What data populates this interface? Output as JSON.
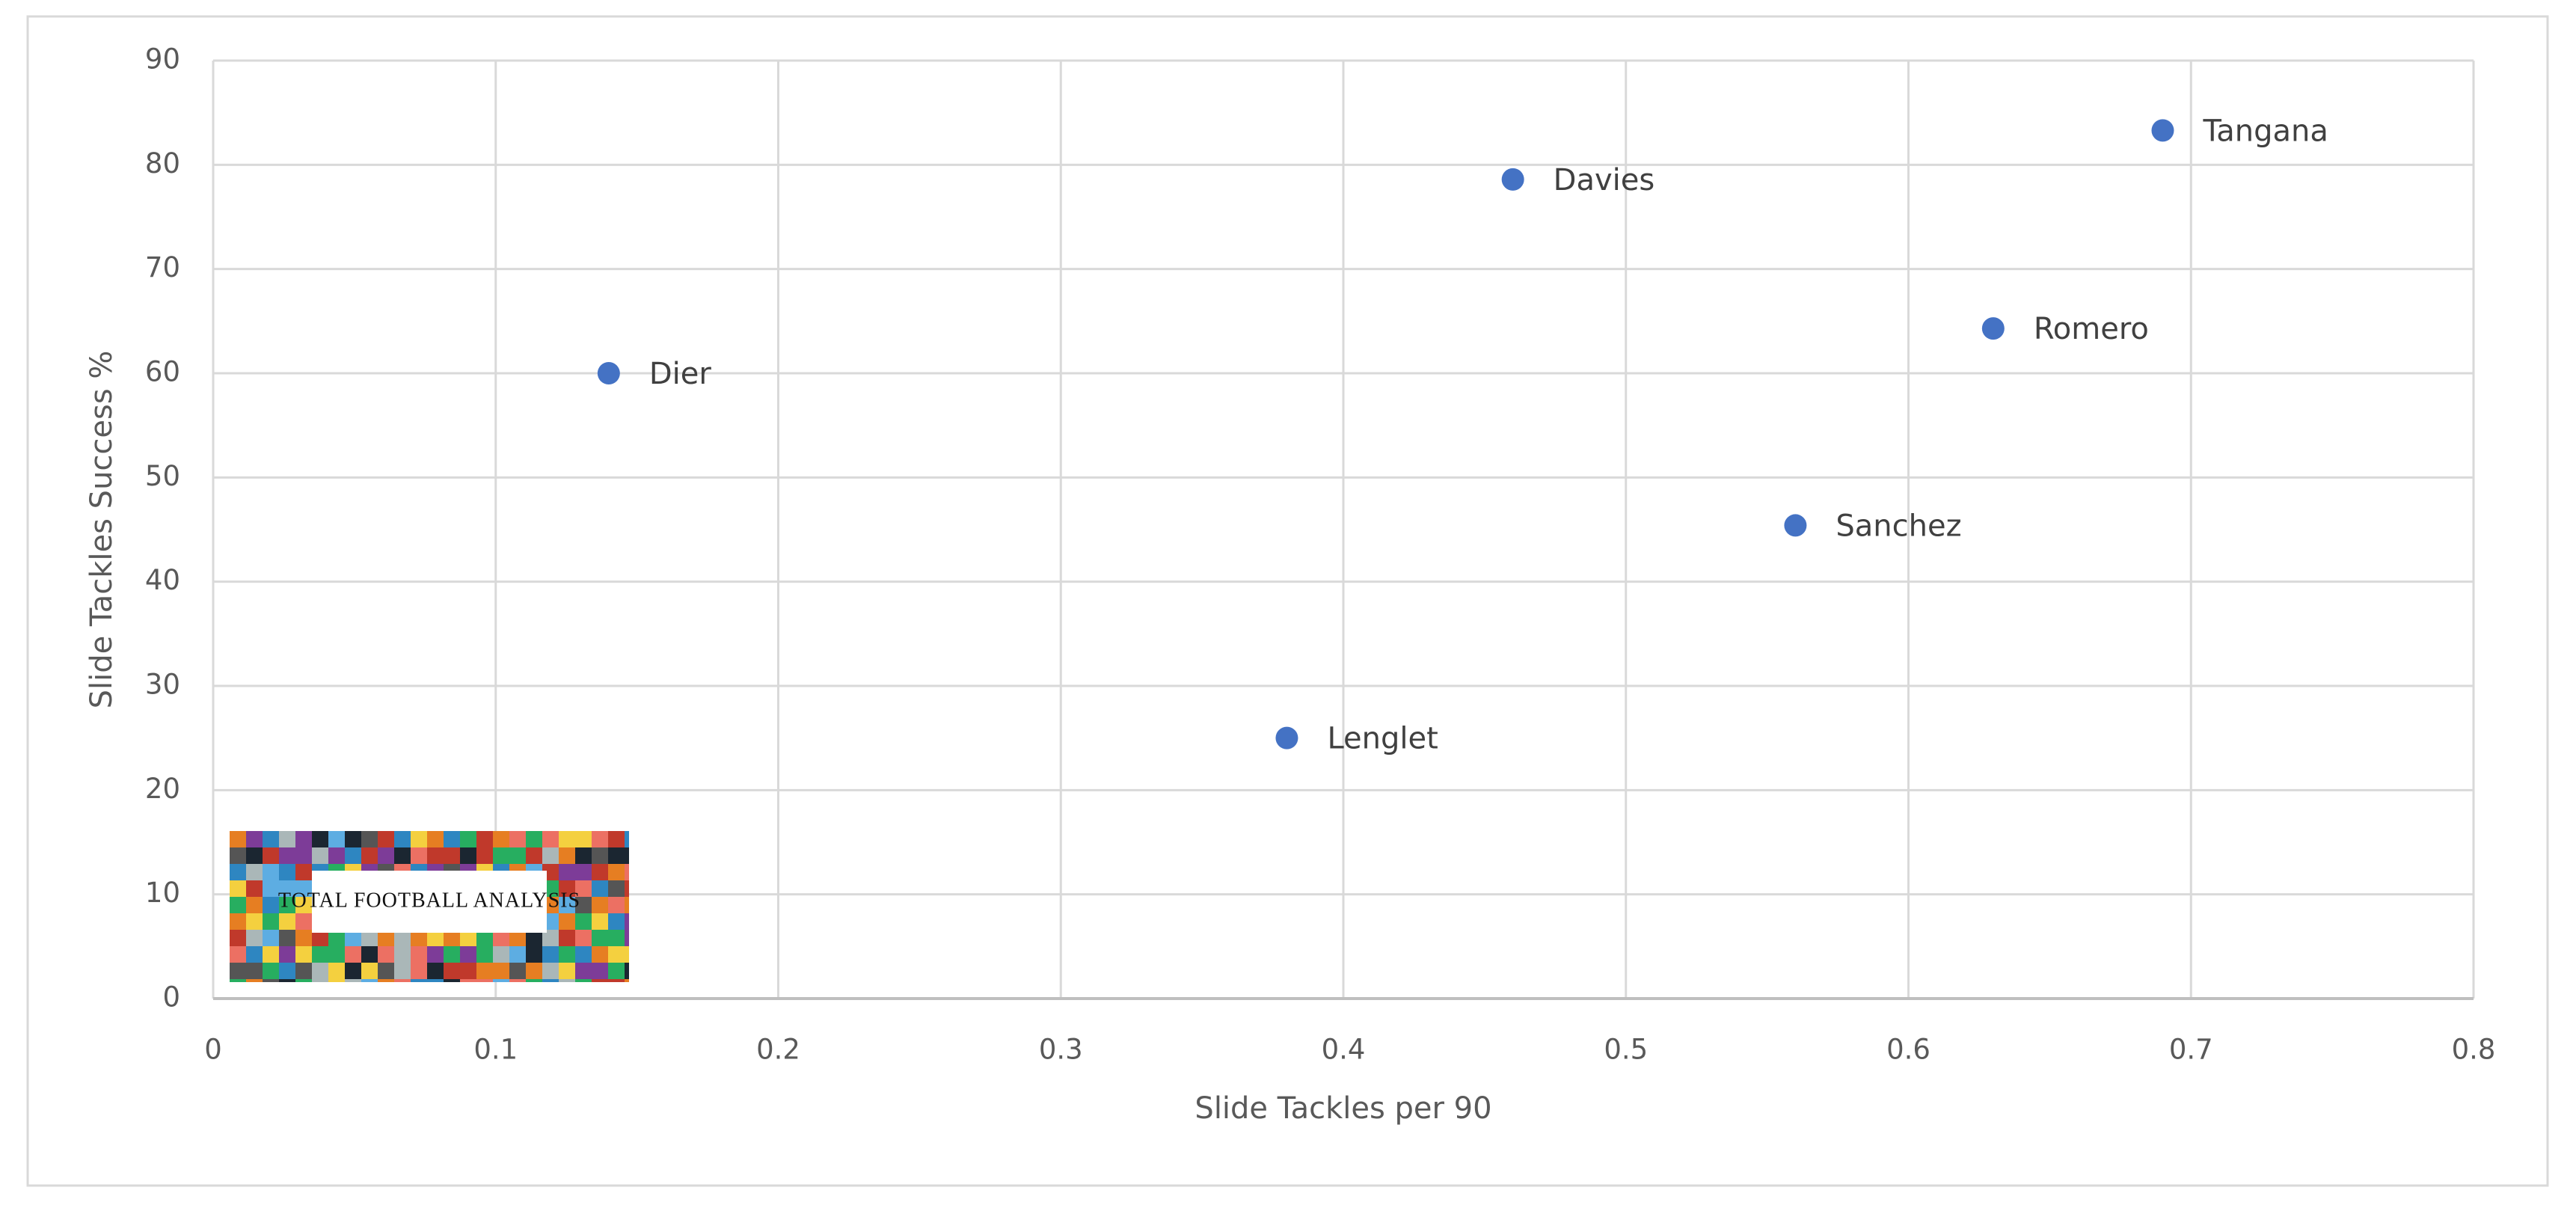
{
  "chart_data": {
    "type": "scatter",
    "x_label": "Slide Tackles per 90",
    "y_label": "Slide Tackles Success %",
    "series": [
      {
        "color": "#4472c4",
        "x": [
          0.14,
          0.38,
          0.46,
          0.56,
          0.63,
          0.69
        ],
        "values": [
          60,
          25,
          78.6,
          45.4,
          64.3,
          83.3
        ],
        "point_labels": [
          "Dier",
          "Lenglet",
          "Davies",
          "Sanchez",
          "Romero",
          "Tangana"
        ]
      }
    ],
    "xlim": [
      0,
      0.8
    ],
    "xticks": [
      0,
      0.1,
      0.2,
      0.3,
      0.4,
      0.5,
      0.6,
      0.7,
      0.8
    ],
    "ylim": [
      0,
      90
    ],
    "yticks": [
      0,
      10,
      20,
      30,
      40,
      50,
      60,
      70,
      80,
      90
    ],
    "grid": true,
    "watermark": "TOTAL FOOTBALL ANALYSIS"
  }
}
